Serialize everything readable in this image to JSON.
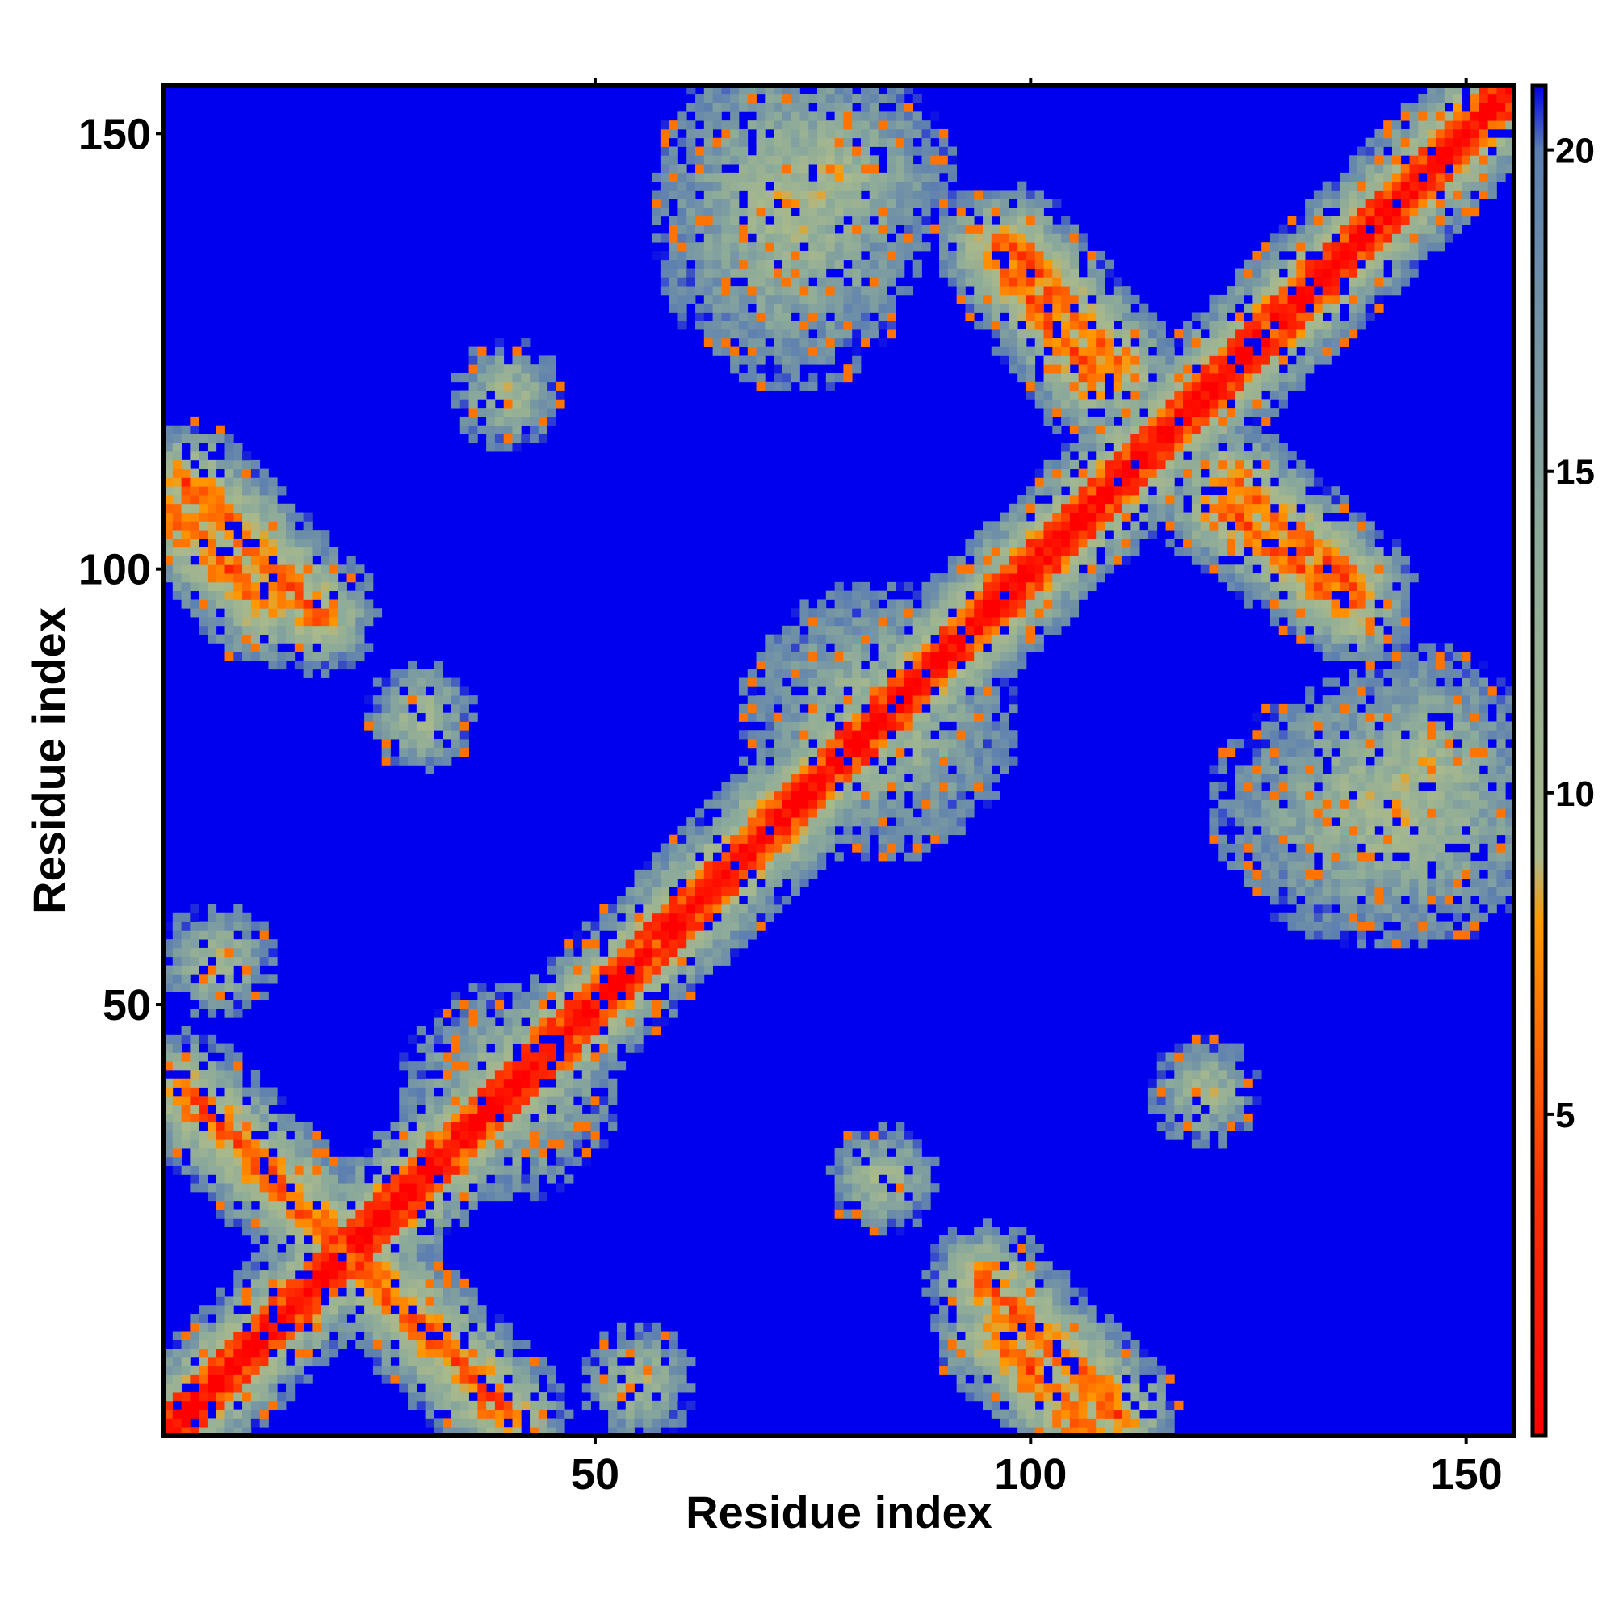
{
  "chart_data": {
    "type": "heatmap",
    "title": "",
    "xlabel": "Residue index",
    "ylabel": "Residue index",
    "n_residues": 155,
    "xlim": [
      1,
      155
    ],
    "ylim": [
      1,
      155
    ],
    "x_ticks": [
      50,
      100,
      150
    ],
    "y_ticks": [
      50,
      100,
      150
    ],
    "x_tick_labels": [
      "50",
      "100",
      "150"
    ],
    "y_tick_labels": [
      "50",
      "100",
      "150"
    ],
    "colorbar": {
      "range": [
        0,
        21
      ],
      "ticks": [
        5,
        10,
        15,
        20
      ],
      "tick_labels": [
        "5",
        "10",
        "15",
        "20"
      ],
      "stops": [
        {
          "value": 0,
          "color": "#ff0000"
        },
        {
          "value": 4,
          "color": "#ff3300"
        },
        {
          "value": 8,
          "color": "#ff9900"
        },
        {
          "value": 9,
          "color": "#a9b98c"
        },
        {
          "value": 14,
          "color": "#8caa9a"
        },
        {
          "value": 20,
          "color": "#5d7fb0"
        },
        {
          "value": 21,
          "color": "#0000ee"
        }
      ]
    },
    "contact_features": [
      {
        "kind": "diagonal",
        "description": "self-distance band",
        "from": 1,
        "to": 155
      },
      {
        "kind": "antidiagonal",
        "x": [
          3,
          30
        ],
        "y": [
          40,
          13
        ]
      },
      {
        "kind": "antidiagonal",
        "x": [
          1,
          12
        ],
        "y": [
          107,
          96
        ]
      },
      {
        "kind": "antidiagonal",
        "x": [
          95,
          110
        ],
        "y": [
          18,
          3
        ]
      },
      {
        "kind": "antidiagonal",
        "x": [
          98,
          110
        ],
        "y": [
          137,
          123
        ]
      },
      {
        "kind": "antidiagonal",
        "x": [
          122,
          137
        ],
        "y": [
          107,
          96
        ]
      },
      {
        "kind": "blob",
        "x": [
          60,
          85
        ],
        "y": [
          125,
          158
        ]
      },
      {
        "kind": "blob",
        "x": [
          135,
          155
        ],
        "y": [
          65,
          88
        ]
      },
      {
        "kind": "blob",
        "x": [
          70,
          95
        ],
        "y": [
          70,
          95
        ]
      },
      {
        "kind": "blob",
        "x": [
          30,
          50
        ],
        "y": [
          30,
          50
        ]
      },
      {
        "kind": "blob",
        "x": [
          1,
          12
        ],
        "y": [
          50,
          60
        ]
      },
      {
        "kind": "blob",
        "x": [
          115,
          125
        ],
        "y": [
          35,
          45
        ]
      },
      {
        "kind": "blob",
        "x": [
          78,
          88
        ],
        "y": [
          25,
          35
        ]
      }
    ]
  }
}
